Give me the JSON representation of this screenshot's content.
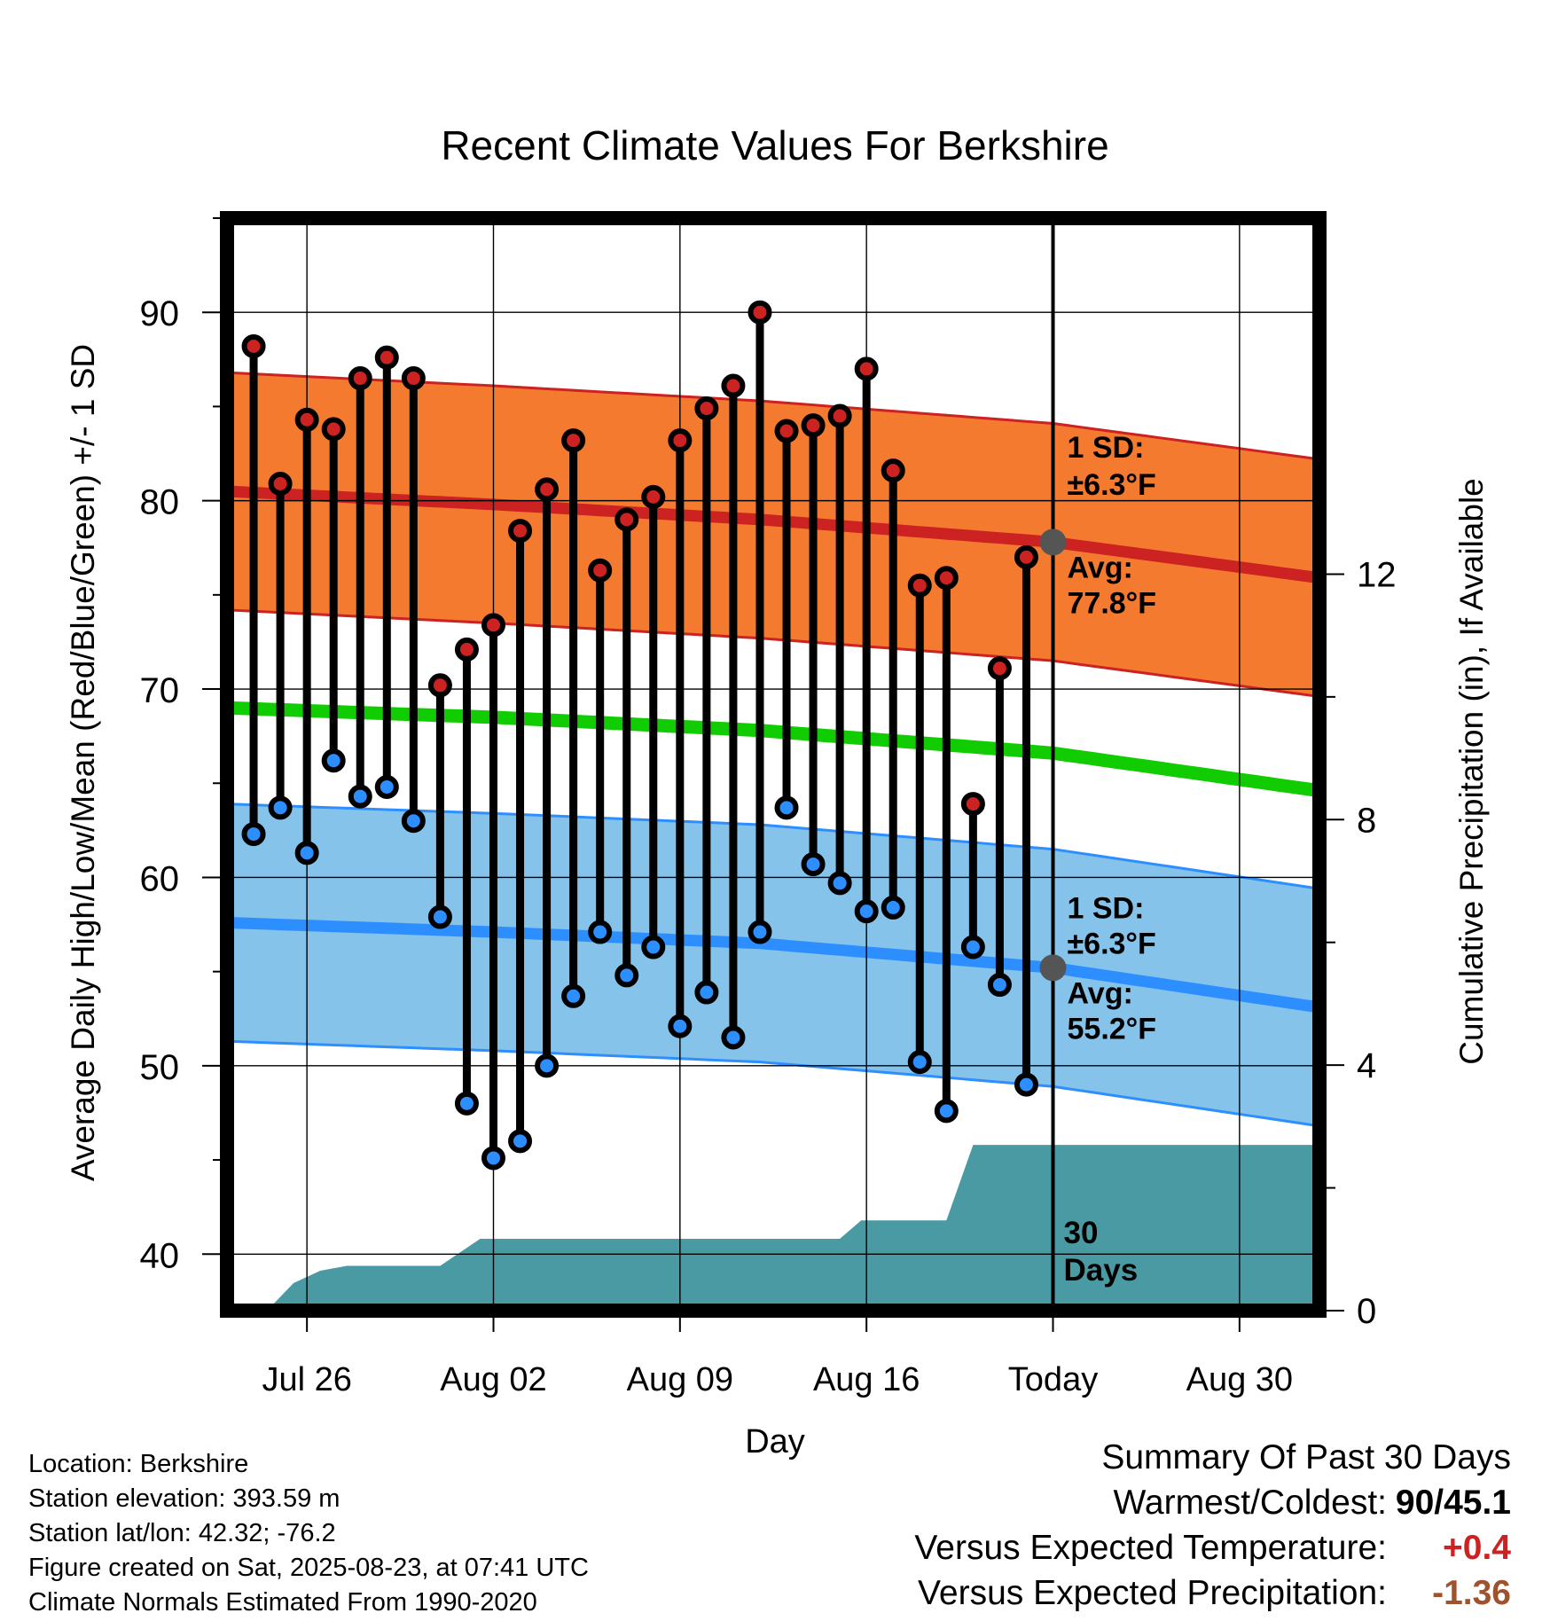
{
  "chart_data": {
    "type": "line",
    "title": "Recent Climate Values For Berkshire",
    "xlabel": "Day",
    "ylabel": "Average Daily High/Low/Mean (Red/Blue/Green) +/- 1 SD",
    "y2label": "Cumulative Precipitation (in), If Available",
    "x_tick_labels": [
      "Jul 26",
      "Aug 02",
      "Aug 09",
      "Aug 16",
      "Today",
      "Aug 30"
    ],
    "x_tick_days": [
      3,
      10,
      17,
      24,
      31,
      38
    ],
    "xlim_days": [
      0,
      41
    ],
    "ylim": [
      37,
      95
    ],
    "y_ticks": [
      40,
      50,
      60,
      70,
      80,
      90
    ],
    "y2lim": [
      0,
      17.8
    ],
    "y2_ticks": [
      0,
      4,
      8,
      12
    ],
    "grid": true,
    "series": [
      {
        "kind": "daily_high",
        "color": "#cc2222",
        "days": [
          1,
          2,
          3,
          4,
          5,
          6,
          7,
          8,
          9,
          10,
          11,
          12,
          13,
          14,
          15,
          16,
          17,
          18,
          19,
          20,
          21,
          22,
          23,
          24,
          25,
          26,
          27,
          28,
          29,
          30
        ],
        "values": [
          88.2,
          80.9,
          84.3,
          83.8,
          86.5,
          87.6,
          86.5,
          70.2,
          72.1,
          73.4,
          78.4,
          80.6,
          83.2,
          76.3,
          79.0,
          80.2,
          83.2,
          84.9,
          86.1,
          90.0,
          83.7,
          84.0,
          84.5,
          87.0,
          81.6,
          75.5,
          75.9,
          63.9,
          71.1,
          77.0
        ]
      },
      {
        "kind": "daily_low",
        "color": "#2d8fff",
        "days": [
          1,
          2,
          3,
          4,
          5,
          6,
          7,
          8,
          9,
          10,
          11,
          12,
          13,
          14,
          15,
          16,
          17,
          18,
          19,
          20,
          21,
          22,
          23,
          24,
          25,
          26,
          27,
          28,
          29,
          30
        ],
        "values": [
          62.3,
          63.7,
          61.3,
          66.2,
          64.3,
          64.8,
          63.0,
          57.9,
          48.0,
          45.1,
          46.0,
          50.0,
          53.7,
          57.1,
          54.8,
          56.3,
          52.1,
          53.9,
          51.5,
          57.1,
          63.7,
          60.7,
          59.7,
          58.2,
          58.4,
          50.2,
          47.6,
          56.3,
          54.3,
          49.0
        ]
      },
      {
        "kind": "normal_high",
        "name": "Avg: 77.8°F",
        "color": "#cc2222",
        "days": [
          0,
          10,
          20,
          31,
          41
        ],
        "values": [
          80.5,
          79.8,
          79.0,
          77.8,
          75.9
        ]
      },
      {
        "kind": "normal_mean",
        "color": "#11cc00",
        "days": [
          0,
          10,
          20,
          31,
          41
        ],
        "values": [
          69.0,
          68.5,
          67.8,
          66.6,
          64.6
        ]
      },
      {
        "kind": "normal_low",
        "name": "Avg: 55.2°F",
        "color": "#2d8fff",
        "days": [
          0,
          10,
          20,
          31,
          41
        ],
        "values": [
          57.6,
          57.1,
          56.5,
          55.2,
          53.1
        ]
      },
      {
        "kind": "cumulative_precip",
        "color": "#4a9aa3",
        "days": [
          0,
          1.5,
          2.5,
          3.5,
          4.5,
          6,
          7,
          8,
          9.5,
          10,
          20,
          22,
          23,
          23.8,
          27,
          28,
          31,
          41
        ],
        "values": [
          0,
          0,
          0.45,
          0.65,
          0.73,
          0.73,
          0.73,
          0.73,
          1.17,
          1.17,
          1.17,
          1.17,
          1.17,
          1.47,
          1.47,
          2.7,
          2.7,
          2.7
        ]
      }
    ],
    "sd_bands": {
      "high_sd": 6.3,
      "low_sd": 6.3,
      "high_color": "#f47a30",
      "low_color": "#85c3ea"
    },
    "annotations": {
      "high_sd_line1": "1 SD:",
      "high_sd_line2": "±6.3°F",
      "high_avg_line1": "Avg:",
      "high_avg_line2": "77.8°F",
      "low_sd_line1": "1 SD:",
      "low_sd_line2": "±6.3°F",
      "low_avg_line1": "Avg:",
      "low_avg_line2": "55.2°F",
      "days_line1": "30",
      "days_line2": "Days"
    },
    "today_day": 31,
    "today_high_normal": 77.8,
    "today_low_normal": 55.2
  },
  "info": {
    "location": "Location: Berkshire",
    "elevation": "Station elevation: 393.59 m",
    "latlon": "Station lat/lon: 42.32; -76.2",
    "created": "Figure created on Sat, 2025-08-23, at 07:41 UTC",
    "normals": "Climate Normals Estimated From 1990-2020"
  },
  "summary": {
    "title": "Summary Of Past 30 Days",
    "warmest_label": "Warmest/Coldest:",
    "warmest_value": "90/45.1",
    "temp_label": "Versus Expected Temperature:",
    "temp_value": "+0.4",
    "temp_color": "#cc2222",
    "precip_label": "Versus Expected Precipitation:",
    "precip_value": "-1.36",
    "precip_color": "#a0522d"
  }
}
